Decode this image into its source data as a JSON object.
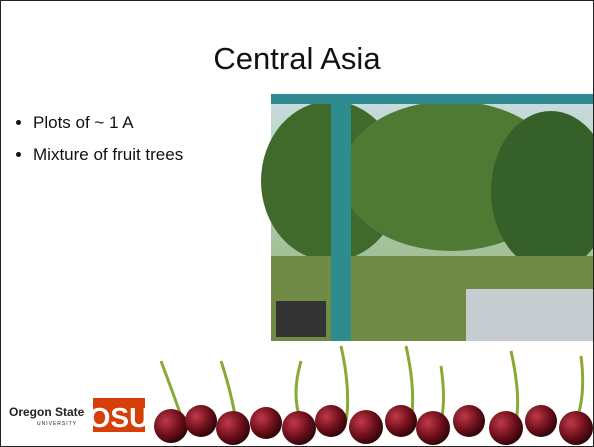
{
  "slide": {
    "title": "Central Asia",
    "bullets": [
      "Plots of ~ 1 A",
      "Mixture of fruit trees"
    ],
    "logo": {
      "name": "Oregon State",
      "sub": "UNIVERSITY",
      "mark": "OSU"
    }
  }
}
